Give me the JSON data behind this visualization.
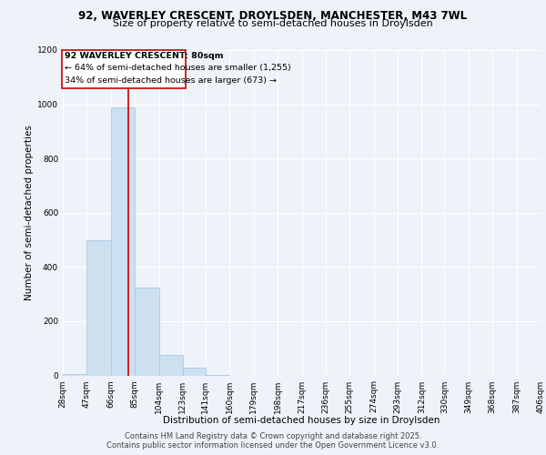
{
  "title_line1": "92, WAVERLEY CRESCENT, DROYLSDEN, MANCHESTER, M43 7WL",
  "title_line2": "Size of property relative to semi-detached houses in Droylsden",
  "xlabel": "Distribution of semi-detached houses by size in Droylsden",
  "ylabel": "Number of semi-detached properties",
  "footer_line1": "Contains HM Land Registry data © Crown copyright and database right 2025.",
  "footer_line2": "Contains public sector information licensed under the Open Government Licence v3.0.",
  "property_size": 80,
  "property_label": "92 WAVERLEY CRESCENT: 80sqm",
  "annotation_smaller": "← 64% of semi-detached houses are smaller (1,255)",
  "annotation_larger": "34% of semi-detached houses are larger (673) →",
  "bin_edges": [
    28,
    47,
    66,
    85,
    104,
    123,
    141,
    160,
    179,
    198,
    217,
    236,
    255,
    274,
    293,
    312,
    330,
    349,
    368,
    387,
    406
  ],
  "bin_labels": [
    "28sqm",
    "47sqm",
    "66sqm",
    "85sqm",
    "104sqm",
    "123sqm",
    "141sqm",
    "160sqm",
    "179sqm",
    "198sqm",
    "217sqm",
    "236sqm",
    "255sqm",
    "274sqm",
    "293sqm",
    "312sqm",
    "330sqm",
    "349sqm",
    "368sqm",
    "387sqm",
    "406sqm"
  ],
  "bar_heights": [
    5,
    500,
    990,
    325,
    75,
    30,
    3,
    0,
    0,
    0,
    0,
    0,
    0,
    0,
    0,
    0,
    0,
    0,
    0,
    0
  ],
  "bar_color": "#cce0f0",
  "bar_edge_color": "#a0c4e0",
  "red_line_x": 80,
  "ylim": [
    0,
    1200
  ],
  "yticks": [
    0,
    200,
    400,
    600,
    800,
    1000,
    1200
  ],
  "bg_color": "#eef2f9",
  "annotation_box_color": "#ffffff",
  "annotation_box_edge": "#cc0000",
  "red_line_color": "#cc0000",
  "title_fontsize": 8.5,
  "subtitle_fontsize": 8,
  "axis_label_fontsize": 7.5,
  "tick_fontsize": 6.5,
  "annotation_fontsize": 6.8,
  "footer_fontsize": 6
}
